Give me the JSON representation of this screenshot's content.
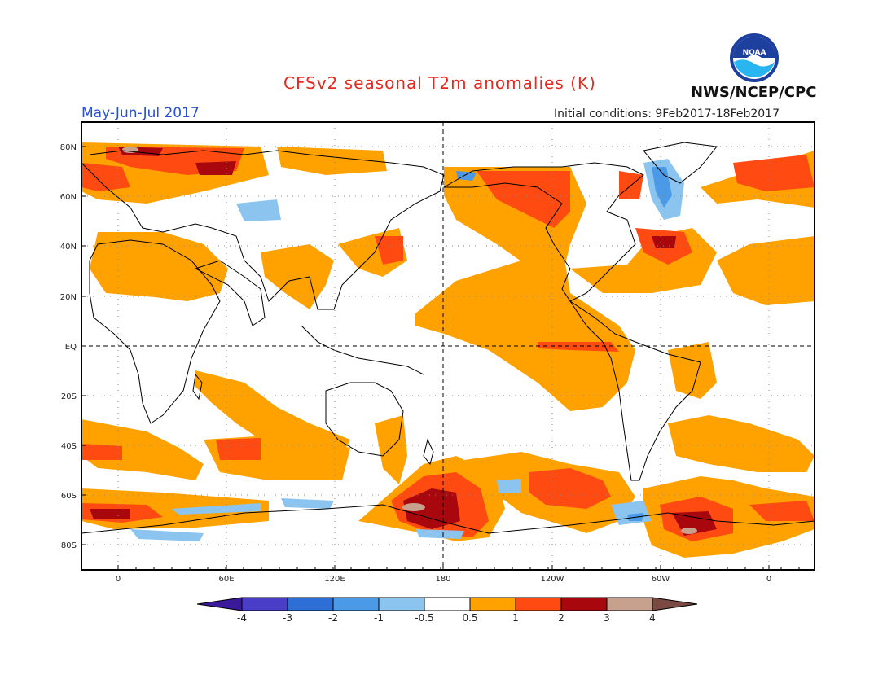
{
  "header": {
    "title": "CFSv2 seasonal T2m anomalies (K)",
    "period": "May-Jun-Jul 2017",
    "initial_conditions": "Initial conditions: 9Feb2017-18Feb2017",
    "agency": "NWS/NCEP/CPC",
    "logo_text": "NOAA"
  },
  "map": {
    "lat_labels": [
      "80N",
      "60N",
      "40N",
      "20N",
      "EQ",
      "20S",
      "40S",
      "60S",
      "80S"
    ],
    "lon_labels": [
      "0",
      "60E",
      "120E",
      "180",
      "120W",
      "60W",
      "0"
    ]
  },
  "colorbar": {
    "tick_labels": [
      "-4",
      "-3",
      "-2",
      "-1",
      "-0.5",
      "0.5",
      "1",
      "2",
      "3",
      "4"
    ],
    "colors": [
      "#3a1a9a",
      "#4a3dc8",
      "#2d6fd6",
      "#4a9ae8",
      "#8cc4f0",
      "#ffffff",
      "#ffa200",
      "#ff4a12",
      "#a8070d",
      "#c8a08e",
      "#7a4a42"
    ]
  }
}
